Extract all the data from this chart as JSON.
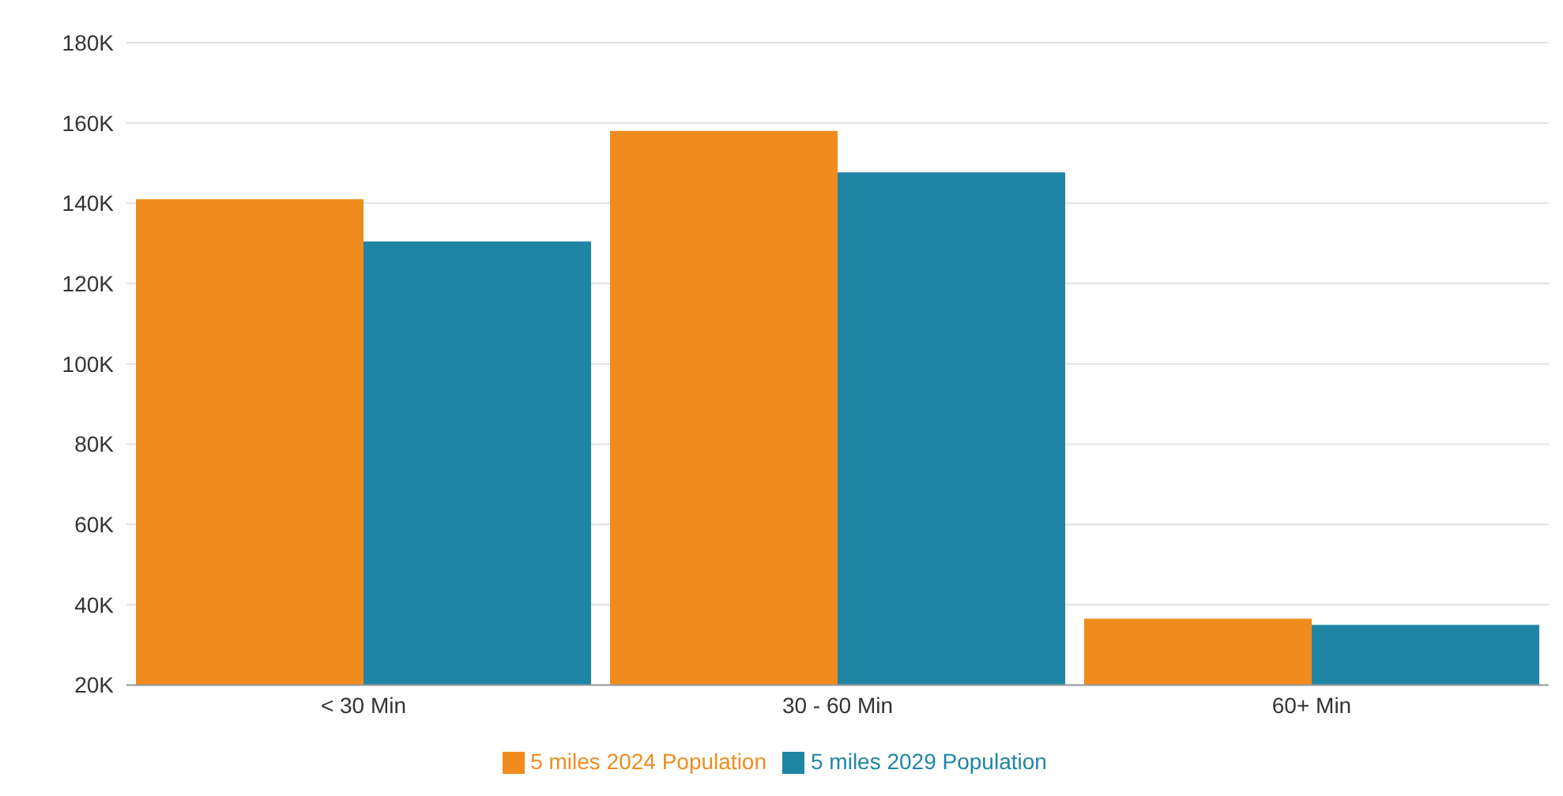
{
  "chart_data": {
    "type": "bar",
    "categories": [
      "< 30 Min",
      "30 - 60 Min",
      "60+ Min"
    ],
    "series": [
      {
        "name": "5 miles 2024 Population",
        "color": "#f08c1e",
        "values": [
          141000,
          158000,
          36500
        ]
      },
      {
        "name": "5 miles 2029 Population",
        "color": "#1f85a5",
        "values": [
          130500,
          147700,
          35000
        ]
      }
    ],
    "ylim": [
      20000,
      180000
    ],
    "yticks": [
      {
        "value": 20000,
        "label": "20K"
      },
      {
        "value": 40000,
        "label": "40K"
      },
      {
        "value": 60000,
        "label": "60K"
      },
      {
        "value": 80000,
        "label": "80K"
      },
      {
        "value": 100000,
        "label": "100K"
      },
      {
        "value": 120000,
        "label": "120K"
      },
      {
        "value": 140000,
        "label": "140K"
      },
      {
        "value": 160000,
        "label": "160K"
      },
      {
        "value": 180000,
        "label": "180K"
      }
    ],
    "grid": "y",
    "legend": "bottom"
  }
}
